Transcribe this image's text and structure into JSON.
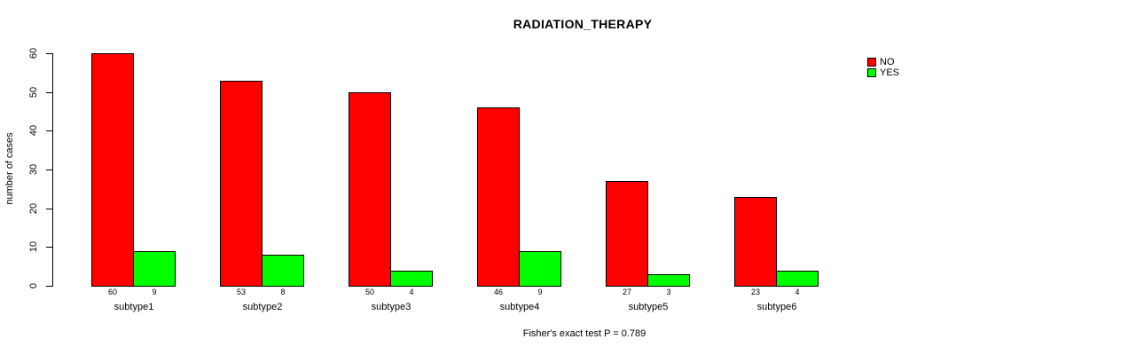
{
  "chart_data": {
    "type": "bar",
    "title": "RADIATION_THERAPY",
    "ylabel": "number of cases",
    "xlabel": "",
    "footer": "Fisher's exact test P = 0.789",
    "categories": [
      "subtype1",
      "subtype2",
      "subtype3",
      "subtype4",
      "subtype5",
      "subtype6"
    ],
    "series": [
      {
        "name": "NO",
        "color": "#ff0000",
        "values": [
          60,
          53,
          50,
          46,
          27,
          23
        ]
      },
      {
        "name": "YES",
        "color": "#00ff00",
        "values": [
          9,
          8,
          4,
          9,
          3,
          4
        ]
      }
    ],
    "ylim": [
      0,
      60
    ],
    "yticks": [
      0,
      10,
      20,
      30,
      40,
      50,
      60
    ],
    "grid": false,
    "legend_position": "top-right",
    "value_labels_shown": true,
    "background_color": "#ffffff",
    "text_color": "#000000"
  }
}
